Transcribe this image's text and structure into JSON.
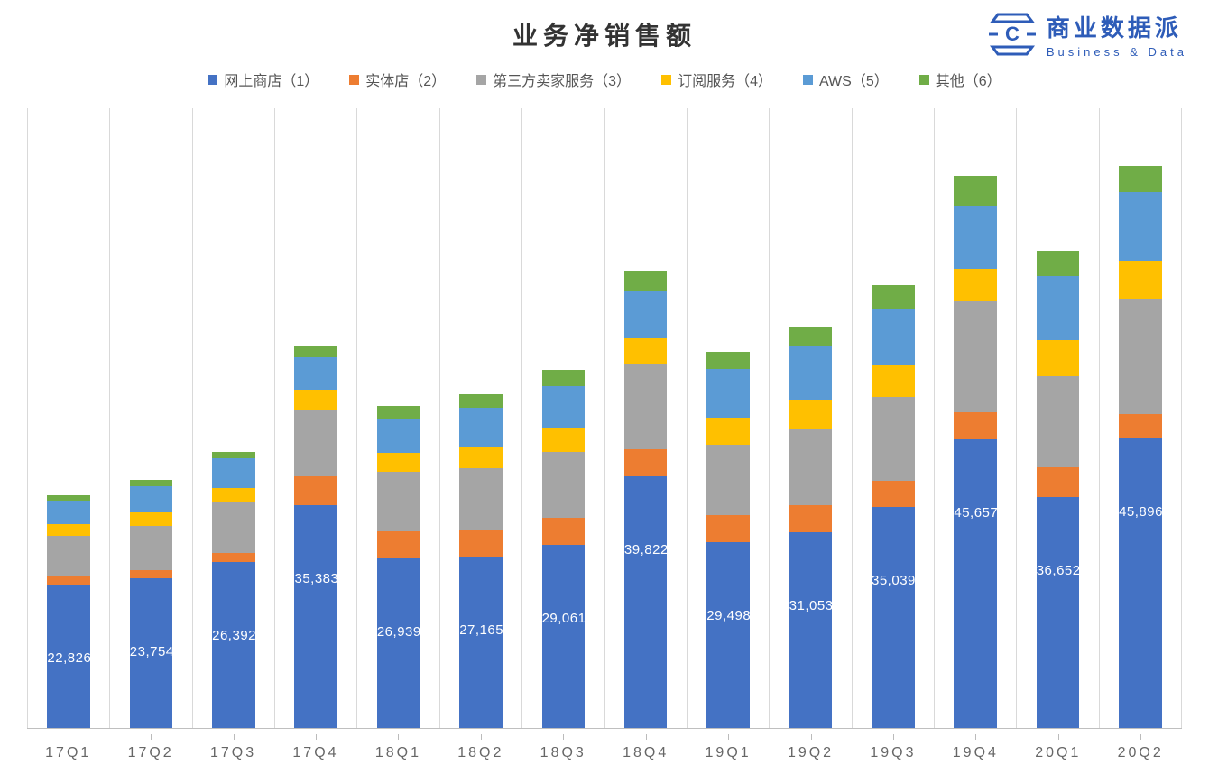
{
  "title": "业务净销售额",
  "title_fontsize": 28,
  "logo": {
    "cn": "商业数据派",
    "en": "Business & Data",
    "color": "#2e5cb8"
  },
  "chart": {
    "type": "stacked-bar",
    "background_color": "#ffffff",
    "gridline_color": "#d9d9d9",
    "bar_width_ratio": 0.52,
    "y_max": 98000,
    "bar_label_color": "#ffffff",
    "bar_label_fontsize": 15,
    "x_label_fontsize": 16,
    "x_label_color": "#666666",
    "legend_fontsize": 16,
    "series": [
      {
        "key": "s1",
        "label": "网上商店（1）",
        "color": "#4472c4"
      },
      {
        "key": "s2",
        "label": "实体店（2）",
        "color": "#ed7d31"
      },
      {
        "key": "s3",
        "label": "第三方卖家服务（3）",
        "color": "#a5a5a5"
      },
      {
        "key": "s4",
        "label": "订阅服务（4）",
        "color": "#ffc000"
      },
      {
        "key": "s5",
        "label": "AWS（5）",
        "color": "#5b9bd5"
      },
      {
        "key": "s6",
        "label": "其他（6）",
        "color": "#70ad47"
      }
    ],
    "categories": [
      "17Q1",
      "17Q2",
      "17Q3",
      "17Q4",
      "18Q1",
      "18Q2",
      "18Q3",
      "18Q4",
      "19Q1",
      "19Q2",
      "19Q3",
      "19Q4",
      "20Q1",
      "20Q2"
    ],
    "bar_labels": [
      "22,826",
      "23,754",
      "26,392",
      "35,383",
      "26,939",
      "27,165",
      "29,061",
      "39,822",
      "29,498",
      "31,053",
      "35,039",
      "45,657",
      "36,652",
      "45,896"
    ],
    "data": {
      "s1": [
        22826,
        23754,
        26392,
        35383,
        26939,
        27165,
        29061,
        39822,
        29498,
        31053,
        35039,
        45657,
        36652,
        45896
      ],
      "s2": [
        1200,
        1300,
        1400,
        4500,
        4300,
        4300,
        4300,
        4400,
        4300,
        4300,
        4200,
        4400,
        4600,
        3800
      ],
      "s3": [
        6400,
        7000,
        7900,
        10500,
        9300,
        9700,
        10400,
        13400,
        11100,
        12000,
        13200,
        17400,
        14500,
        18200
      ],
      "s4": [
        1900,
        2200,
        2400,
        3200,
        3100,
        3400,
        3700,
        4000,
        4300,
        4700,
        5000,
        5200,
        5600,
        6000
      ],
      "s5": [
        3700,
        4100,
        4600,
        5100,
        5400,
        6100,
        6700,
        7400,
        7700,
        8400,
        9000,
        9900,
        10200,
        10800
      ],
      "s6": [
        850,
        950,
        1100,
        1700,
        2000,
        2200,
        2500,
        3400,
        2700,
        3000,
        3600,
        4800,
        3900,
        4200
      ]
    }
  }
}
